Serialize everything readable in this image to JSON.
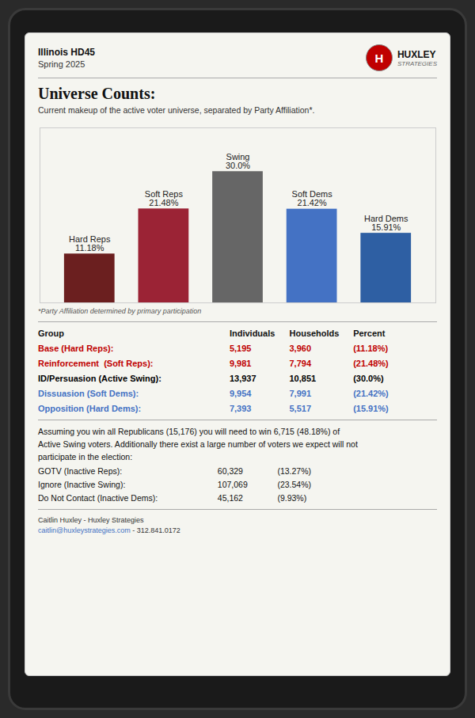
{
  "chart_data": {
    "type": "bar",
    "title": "Universe Counts:",
    "subtitle": "Current makeup of the active voter universe, separated by Party Affiliation*.",
    "header": [
      "Illinois HD45",
      "Spring 2025"
    ],
    "logo": {
      "mark": "H",
      "name": "HUXLEY",
      "tagline": "STRATEGIES",
      "color": "#C00000"
    },
    "categories": [
      "Hard Reps",
      "Soft Reps",
      "Swing",
      "Soft Dems",
      "Hard Dems"
    ],
    "values": [
      11.18,
      21.48,
      30.0,
      21.42,
      15.91
    ],
    "value_labels": [
      "11.18%",
      "21.48%",
      "30.0%",
      "21.42%",
      "15.91%"
    ],
    "colors": [
      "#6B1F1F",
      "#9B2335",
      "#666666",
      "#4472C4",
      "#2E5FA3"
    ],
    "ylim": [
      0,
      40
    ],
    "data_labels": true,
    "tick_labels": false,
    "footnote": "*Party Affiliation determined by primary participation",
    "table": {
      "headers": [
        "Group",
        "Individuals",
        "Households",
        "Percent"
      ],
      "rows": [
        {
          "cells": [
            "Base (Hard Reps):",
            "5,195",
            "3,960",
            "(11.18%)"
          ],
          "color": "#C00000"
        },
        {
          "cells": [
            "Reinforcement  (Soft Reps):",
            "9,981",
            "7,794",
            "(21.48%)"
          ],
          "color": "#C00000"
        },
        {
          "cells": [
            "ID/Persuasion (Active Swing):",
            "13,937",
            "10,851",
            "(30.0%)"
          ],
          "color": "#000000"
        },
        {
          "cells": [
            "Dissuasion (Soft Dems):",
            "9,954",
            "7,991",
            "(21.42%)"
          ],
          "color": "#4472C4"
        },
        {
          "cells": [
            "Opposition (Hard Dems):",
            "7,393",
            "5,517",
            "(15.91%)"
          ],
          "color": "#4472C4"
        }
      ]
    },
    "narrative": [
      "Assuming you win all Republicans (15,176) you will need to win 6,715 (48.18%) of",
      "Active Swing voters. Additionally there exist a large number of voters we expect will not",
      "participate in the election:"
    ],
    "gotv_rows": [
      [
        "GOTV (Inactive Reps):",
        "60,329",
        "(13.27%)"
      ],
      [
        "Ignore (Inactive Swing):",
        "107,069",
        "(23.54%)"
      ],
      [
        "Do Not Contact (Inactive Dems):",
        "45,162",
        "(9.93%)"
      ]
    ],
    "footer": {
      "name": "Caitlin Huxley - Huxley Strategies",
      "email": "caitlin@huxleystrategies.com",
      "email_color": "#4472C4",
      "phone": " - 312.841.0172"
    }
  }
}
